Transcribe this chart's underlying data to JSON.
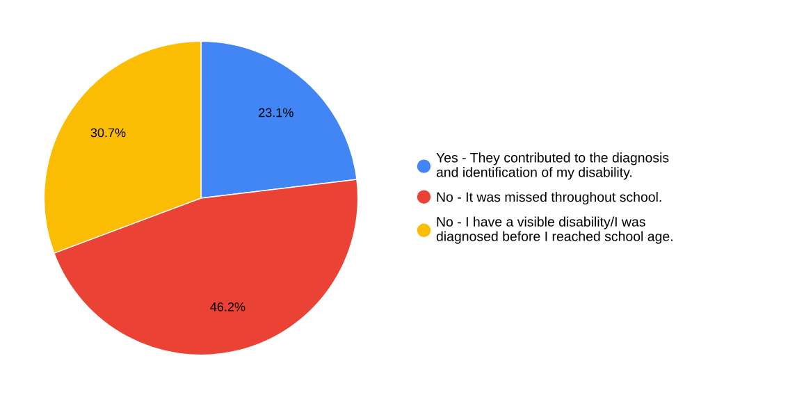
{
  "chart_data": {
    "type": "pie",
    "categories": [
      "Yes - They contributed to the diagnosis\nand identification of my disability.",
      "No - It was missed throughout school.",
      "No - I have a visible disability/I was\ndiagnosed before I reached school age."
    ],
    "values": [
      23.1,
      46.2,
      30.7
    ],
    "colors": [
      "#4285f4",
      "#ea4335",
      "#fbbc04"
    ],
    "value_labels": [
      "23.1%",
      "46.2%",
      "30.7%"
    ],
    "legend": "right"
  }
}
